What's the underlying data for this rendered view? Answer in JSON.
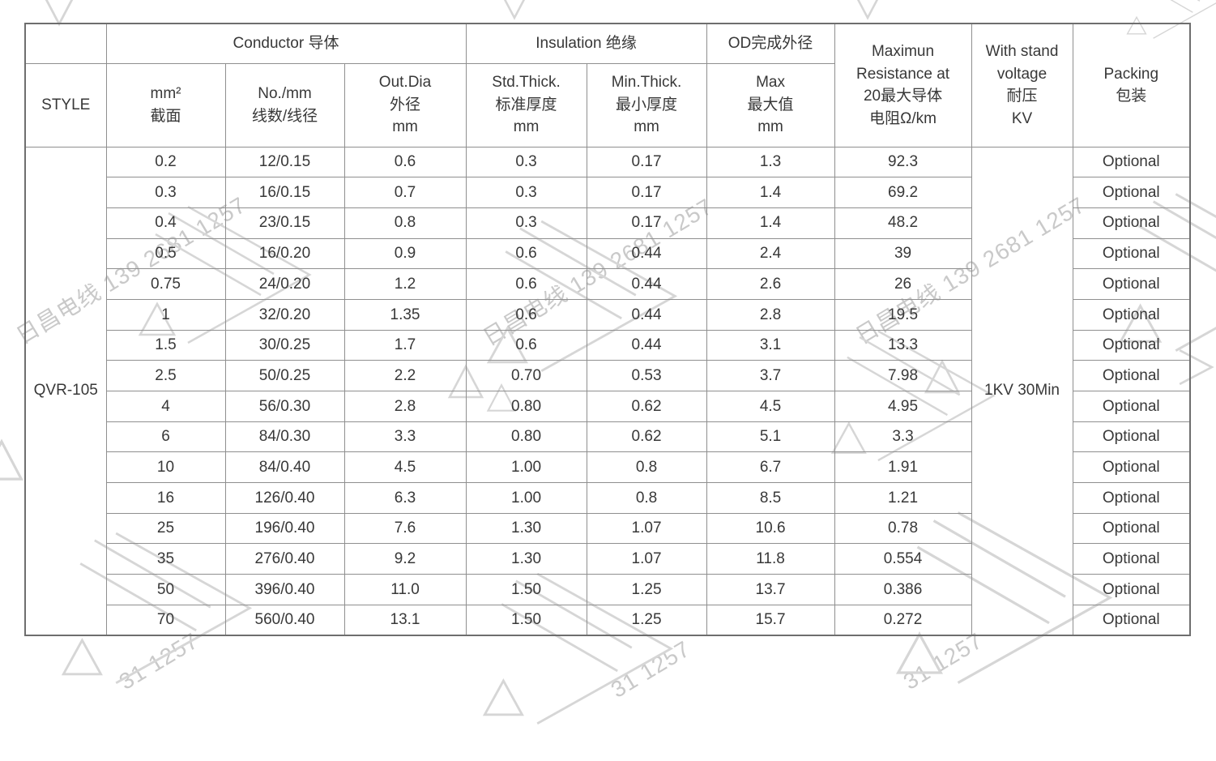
{
  "colors": {
    "text": "#383838",
    "border_inner": "#8f8f8f",
    "border_outer": "#6e6e6e",
    "watermark": "#c9c9c9"
  },
  "watermark": {
    "text": "日昌电线 139 2681 1257",
    "fragment": "31 1257",
    "logo_icon": "triangle-chevron-logo"
  },
  "table": {
    "header": {
      "style": "STYLE",
      "conductor_group": "Conductor 导体",
      "insulation_group": "Insulation 绝缘",
      "od_group": "OD完成外径",
      "area": "mm²\n截面",
      "strands": "No./mm\n线数/线径",
      "out_dia": "Out.Dia\n外径\nmm",
      "std_thick": "Std.Thick.\n标准厚度\nmm",
      "min_thick": "Min.Thick.\n最小厚度\nmm",
      "max_od": "Max\n最大值\nmm",
      "resistance": "Maximun\nResistance at\n20最大导体\n电阻Ω/km",
      "withstand": "With stand\nvoltage\n耐压\nKV",
      "packing": "Packing\n包装"
    },
    "style_value": "QVR-105",
    "withstand_value": "1KV 30Min",
    "rows": [
      [
        "0.2",
        "12/0.15",
        "0.6",
        "0.3",
        "0.17",
        "1.3",
        "92.3",
        "Optional"
      ],
      [
        "0.3",
        "16/0.15",
        "0.7",
        "0.3",
        "0.17",
        "1.4",
        "69.2",
        "Optional"
      ],
      [
        "0.4",
        "23/0.15",
        "0.8",
        "0.3",
        "0.17",
        "1.4",
        "48.2",
        "Optional"
      ],
      [
        "0.5",
        "16/0.20",
        "0.9",
        "0.6",
        "0.44",
        "2.4",
        "39",
        "Optional"
      ],
      [
        "0.75",
        "24/0.20",
        "1.2",
        "0.6",
        "0.44",
        "2.6",
        "26",
        "Optional"
      ],
      [
        "1",
        "32/0.20",
        "1.35",
        "0.6",
        "0.44",
        "2.8",
        "19.5",
        "Optional"
      ],
      [
        "1.5",
        "30/0.25",
        "1.7",
        "0.6",
        "0.44",
        "3.1",
        "13.3",
        "Optional"
      ],
      [
        "2.5",
        "50/0.25",
        "2.2",
        "0.70",
        "0.53",
        "3.7",
        "7.98",
        "Optional"
      ],
      [
        "4",
        "56/0.30",
        "2.8",
        "0.80",
        "0.62",
        "4.5",
        "4.95",
        "Optional"
      ],
      [
        "6",
        "84/0.30",
        "3.3",
        "0.80",
        "0.62",
        "5.1",
        "3.3",
        "Optional"
      ],
      [
        "10",
        "84/0.40",
        "4.5",
        "1.00",
        "0.8",
        "6.7",
        "1.91",
        "Optional"
      ],
      [
        "16",
        "126/0.40",
        "6.3",
        "1.00",
        "0.8",
        "8.5",
        "1.21",
        "Optional"
      ],
      [
        "25",
        "196/0.40",
        "7.6",
        "1.30",
        "1.07",
        "10.6",
        "0.78",
        "Optional"
      ],
      [
        "35",
        "276/0.40",
        "9.2",
        "1.30",
        "1.07",
        "11.8",
        "0.554",
        "Optional"
      ],
      [
        "50",
        "396/0.40",
        "11.0",
        "1.50",
        "1.25",
        "13.7",
        "0.386",
        "Optional"
      ],
      [
        "70",
        "560/0.40",
        "13.1",
        "1.50",
        "1.25",
        "15.7",
        "0.272",
        "Optional"
      ]
    ]
  }
}
